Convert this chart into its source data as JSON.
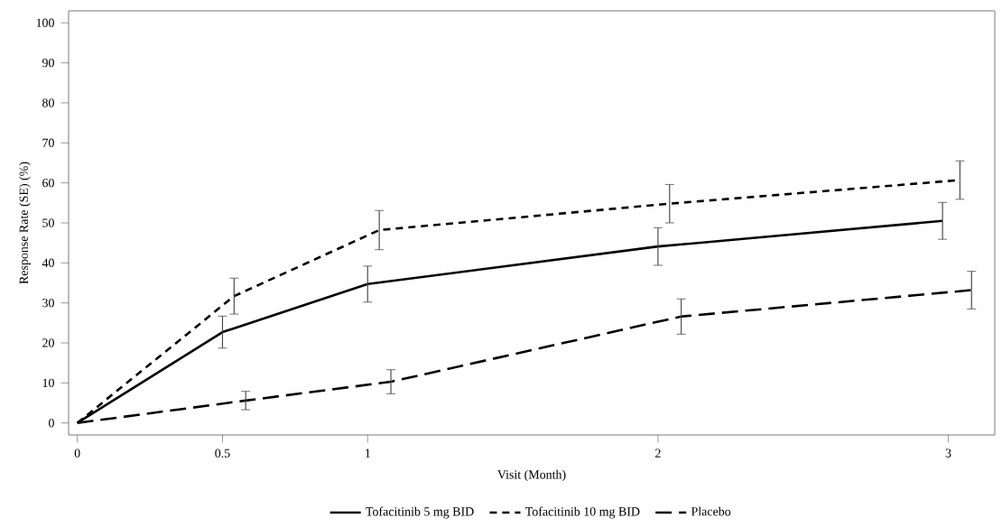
{
  "chart_data": {
    "type": "line",
    "xlabel": "Visit (Month)",
    "ylabel": "Response Rate (SE) (%)",
    "xlim": [
      -0.03,
      3.16
    ],
    "ylim": [
      -3,
      103
    ],
    "xticks": [
      0,
      0.5,
      1,
      2,
      3
    ],
    "yticks": [
      0,
      10,
      20,
      30,
      40,
      50,
      60,
      70,
      80,
      90,
      100
    ],
    "grid": false,
    "legend": "bottom",
    "marker": "none",
    "series": [
      {
        "name": "Tofacitinib 5 mg BID",
        "color": "#000000",
        "line_style": "solid",
        "x": [
          0,
          0.5,
          1.0,
          2.0,
          2.98
        ],
        "values": [
          0,
          22.7,
          34.7,
          44.1,
          50.5
        ],
        "errors": [
          null,
          4.0,
          4.5,
          4.7,
          4.6
        ]
      },
      {
        "name": "Tofacitinib 10 mg BID",
        "color": "#000000",
        "line_style": "dotted",
        "x": [
          0,
          0.54,
          1.04,
          2.04,
          3.04
        ],
        "values": [
          0,
          31.7,
          48.2,
          54.8,
          60.7
        ],
        "errors": [
          null,
          4.5,
          4.9,
          4.8,
          4.8
        ]
      },
      {
        "name": "Placebo",
        "color": "#000000",
        "line_style": "dashed",
        "x": [
          0,
          0.58,
          1.08,
          2.08,
          3.08
        ],
        "values": [
          0,
          5.6,
          10.3,
          26.6,
          33.2
        ],
        "errors": [
          null,
          2.3,
          3.0,
          4.4,
          4.7
        ]
      }
    ]
  }
}
